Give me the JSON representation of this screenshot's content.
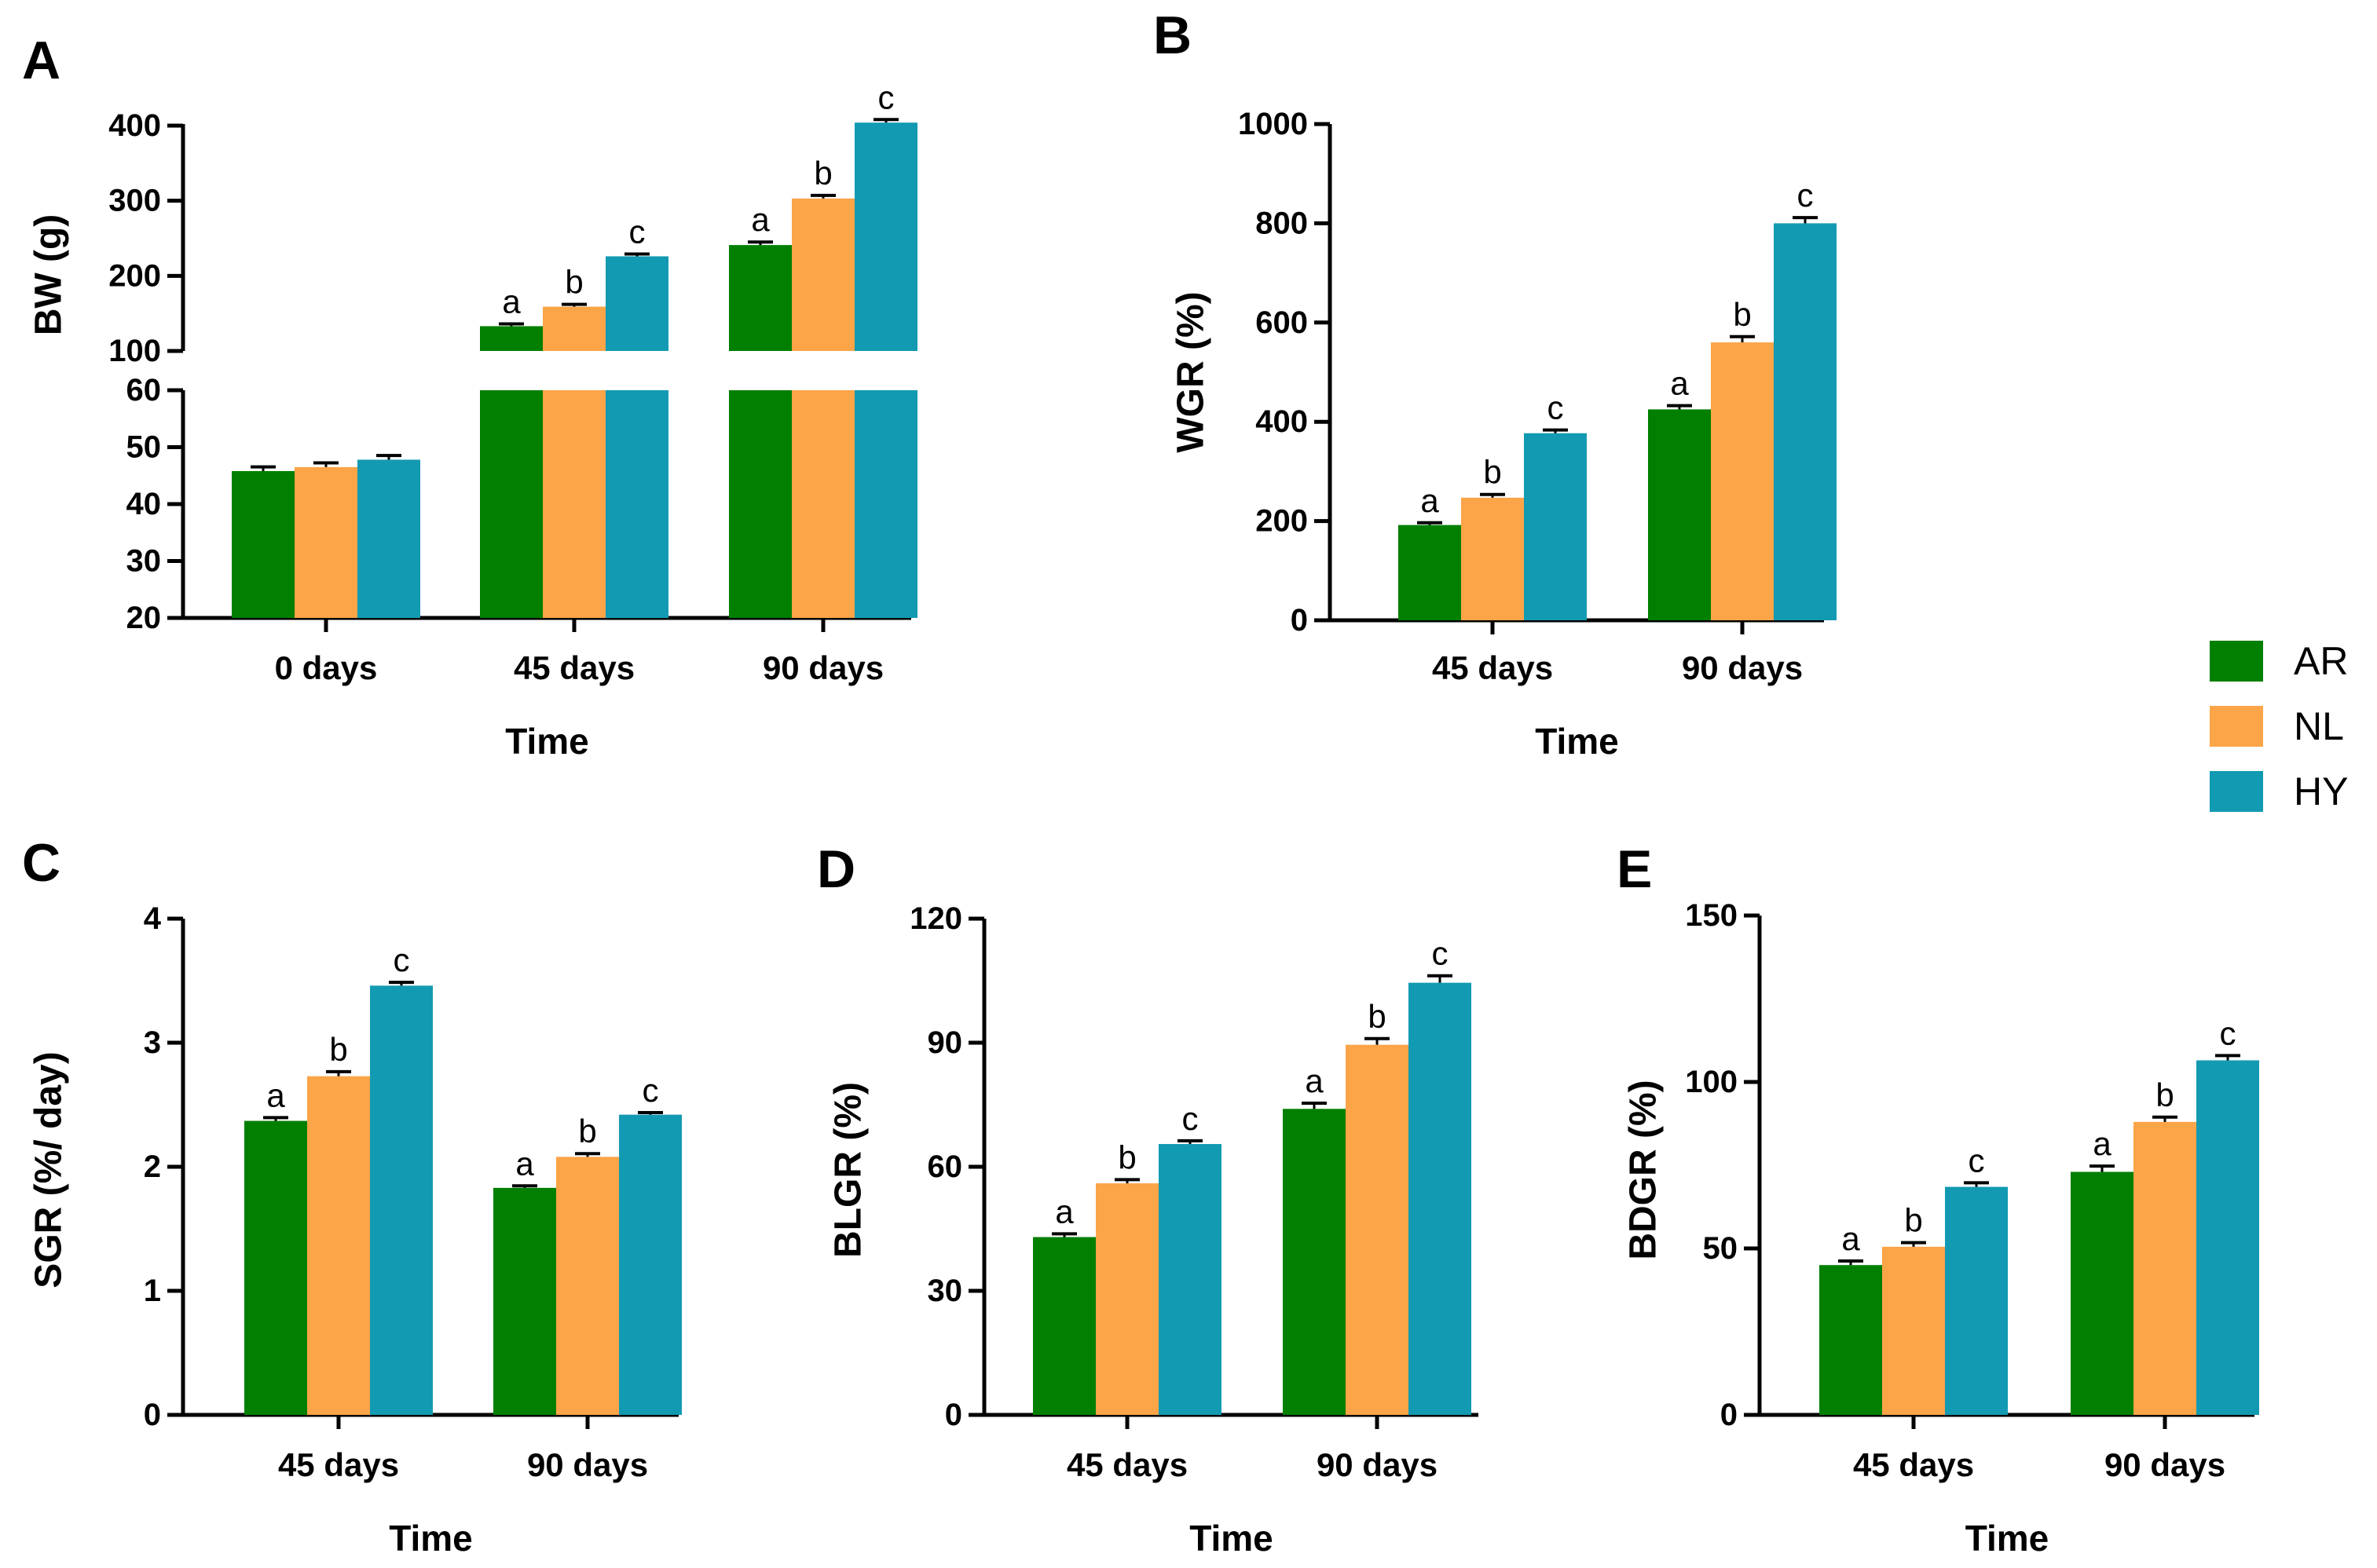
{
  "colors": {
    "AR": "#007F00",
    "NL": "#FBA448",
    "HY": "#129AB2"
  },
  "legend": [
    {
      "label": "AR",
      "color": "#007F00"
    },
    {
      "label": "NL",
      "color": "#FBA448"
    },
    {
      "label": "HY",
      "color": "#129AB2"
    }
  ],
  "chart_data": [
    {
      "panel": "A",
      "type": "bar",
      "ylabel": "BW (g)",
      "xlabel": "Time",
      "categories": [
        "0 days",
        "45 days",
        "90 days"
      ],
      "y_break": {
        "lower": [
          20,
          60
        ],
        "upper": [
          100,
          400
        ]
      },
      "lower_ticks": [
        20,
        30,
        40,
        50,
        60
      ],
      "upper_ticks": [
        100,
        200,
        300,
        400
      ],
      "series": [
        {
          "name": "AR",
          "values": [
            45.8,
            133,
            241
          ],
          "errors": [
            0.6,
            2,
            3
          ],
          "letters": [
            "",
            "a",
            "a"
          ]
        },
        {
          "name": "NL",
          "values": [
            46.5,
            159,
            303
          ],
          "errors": [
            0.6,
            2,
            3
          ],
          "letters": [
            "",
            "b",
            "b"
          ]
        },
        {
          "name": "HY",
          "values": [
            47.8,
            226,
            404
          ],
          "errors": [
            0.6,
            2,
            3
          ],
          "letters": [
            "",
            "c",
            "c"
          ]
        }
      ]
    },
    {
      "panel": "B",
      "type": "bar",
      "ylabel": "WGR (%)",
      "xlabel": "Time",
      "categories": [
        "45 days",
        "90 days"
      ],
      "ylim": [
        0,
        1000
      ],
      "ticks": [
        0,
        200,
        400,
        600,
        800,
        1000
      ],
      "series": [
        {
          "name": "AR",
          "values": [
            192,
            425
          ],
          "errors": [
            3,
            6
          ],
          "letters": [
            "a",
            "a"
          ]
        },
        {
          "name": "NL",
          "values": [
            247,
            560
          ],
          "errors": [
            5,
            10
          ],
          "letters": [
            "b",
            "b"
          ]
        },
        {
          "name": "HY",
          "values": [
            377,
            800
          ],
          "errors": [
            5,
            10
          ],
          "letters": [
            "c",
            "c"
          ]
        }
      ]
    },
    {
      "panel": "C",
      "type": "bar",
      "ylabel": "SGR (%/ day)",
      "xlabel": "Time",
      "categories": [
        "45 days",
        "90 days"
      ],
      "ylim": [
        0,
        4
      ],
      "ticks": [
        0,
        1,
        2,
        3,
        4
      ],
      "series": [
        {
          "name": "AR",
          "values": [
            2.37,
            1.83
          ],
          "errors": [
            0.02,
            0.01
          ],
          "letters": [
            "a",
            "a"
          ]
        },
        {
          "name": "NL",
          "values": [
            2.73,
            2.08
          ],
          "errors": [
            0.03,
            0.02
          ],
          "letters": [
            "b",
            "b"
          ]
        },
        {
          "name": "HY",
          "values": [
            3.46,
            2.42
          ],
          "errors": [
            0.02,
            0.01
          ],
          "letters": [
            "c",
            "c"
          ]
        }
      ]
    },
    {
      "panel": "D",
      "type": "bar",
      "ylabel": "BLGR (%)",
      "xlabel": "Time",
      "categories": [
        "45 days",
        "90 days"
      ],
      "ylim": [
        0,
        120
      ],
      "ticks": [
        0,
        30,
        60,
        90,
        120
      ],
      "series": [
        {
          "name": "AR",
          "values": [
            43,
            74
          ],
          "errors": [
            0.6,
            1.2
          ],
          "letters": [
            "a",
            "a"
          ]
        },
        {
          "name": "NL",
          "values": [
            56,
            89.5
          ],
          "errors": [
            0.7,
            1.3
          ],
          "letters": [
            "b",
            "b"
          ]
        },
        {
          "name": "HY",
          "values": [
            65.5,
            104.5
          ],
          "errors": [
            0.6,
            1.5
          ],
          "letters": [
            "c",
            "c"
          ]
        }
      ]
    },
    {
      "panel": "E",
      "type": "bar",
      "ylabel": "BDGR (%)",
      "xlabel": "Time",
      "categories": [
        "45 days",
        "90 days"
      ],
      "ylim": [
        0,
        150
      ],
      "ticks": [
        0,
        50,
        100,
        150
      ],
      "series": [
        {
          "name": "AR",
          "values": [
            45,
            73
          ],
          "errors": [
            1,
            1.5
          ],
          "letters": [
            "a",
            "a"
          ]
        },
        {
          "name": "NL",
          "values": [
            50.5,
            88
          ],
          "errors": [
            1,
            1.2
          ],
          "letters": [
            "b",
            "b"
          ]
        },
        {
          "name": "HY",
          "values": [
            68.5,
            106.5
          ],
          "errors": [
            1,
            1.2
          ],
          "letters": [
            "c",
            "c"
          ]
        }
      ]
    }
  ]
}
